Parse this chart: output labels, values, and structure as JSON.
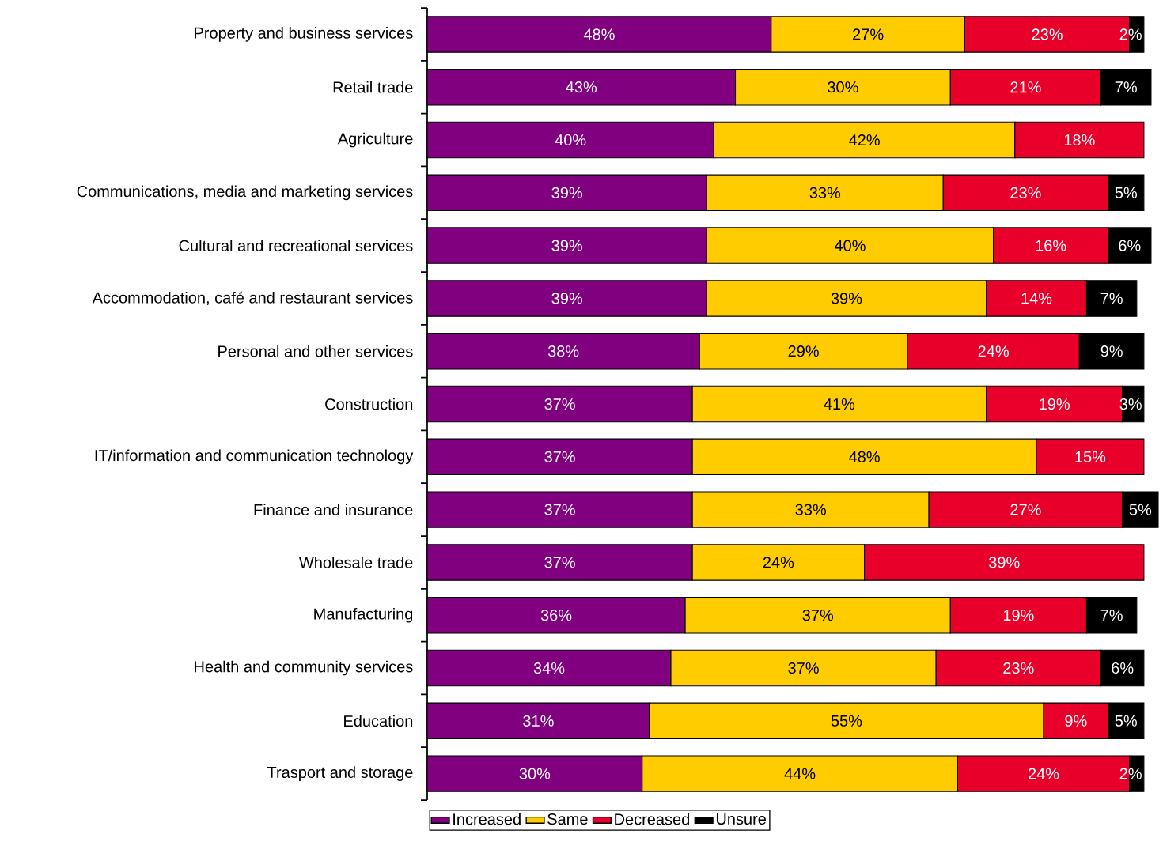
{
  "chart_data": {
    "type": "bar",
    "orientation": "horizontal",
    "stacked": true,
    "tick_labels": "y",
    "legend": "bottom",
    "categories": [
      "Property and business services",
      "Retail trade",
      "Agriculture",
      "Communications, media and marketing services",
      "Cultural and recreational services",
      "Accommodation, café and restaurant services",
      "Personal and other services",
      "Construction",
      "IT/information and communication technology",
      "Finance and insurance",
      "Wholesale trade",
      "Manufacturing",
      "Health and community services",
      "Education",
      "Trasport and storage"
    ],
    "series": [
      {
        "name": "Increased",
        "color": "#800080",
        "values": [
          48,
          43,
          40,
          39,
          39,
          39,
          38,
          37,
          37,
          37,
          37,
          36,
          34,
          31,
          30
        ],
        "value_labels": [
          "48%",
          "43%",
          "40%",
          "39%",
          "39%",
          "39%",
          "38%",
          "37%",
          "37%",
          "37%",
          "37%",
          "36%",
          "34%",
          "31%",
          "30%"
        ]
      },
      {
        "name": "Same",
        "color": "#ffcc00",
        "values": [
          27,
          30,
          42,
          33,
          40,
          39,
          29,
          41,
          48,
          33,
          24,
          37,
          37,
          55,
          44
        ],
        "value_labels": [
          "27%",
          "30%",
          "42%",
          "33%",
          "40%",
          "39%",
          "29%",
          "41%",
          "48%",
          "33%",
          "24%",
          "37%",
          "37%",
          "55%",
          "44%"
        ]
      },
      {
        "name": "Decreased",
        "color": "#e8002a",
        "values": [
          23,
          21,
          18,
          23,
          16,
          14,
          24,
          19,
          15,
          27,
          39,
          19,
          23,
          9,
          24
        ],
        "value_labels": [
          "23%",
          "21%",
          "18%",
          "23%",
          "16%",
          "14%",
          "24%",
          "19%",
          "15%",
          "27%",
          "39%",
          "19%",
          "23%",
          "9%",
          "24%"
        ]
      },
      {
        "name": "Unsure",
        "color": "#000000",
        "values": [
          2,
          7,
          null,
          5,
          6,
          7,
          9,
          3,
          null,
          5,
          null,
          7,
          6,
          5,
          2
        ],
        "value_labels": [
          "2%",
          "7%",
          null,
          "5%",
          "6%",
          "7%",
          "9%",
          "3%",
          null,
          "5%",
          null,
          "7%",
          "6%",
          "5%",
          "2%"
        ]
      }
    ]
  }
}
